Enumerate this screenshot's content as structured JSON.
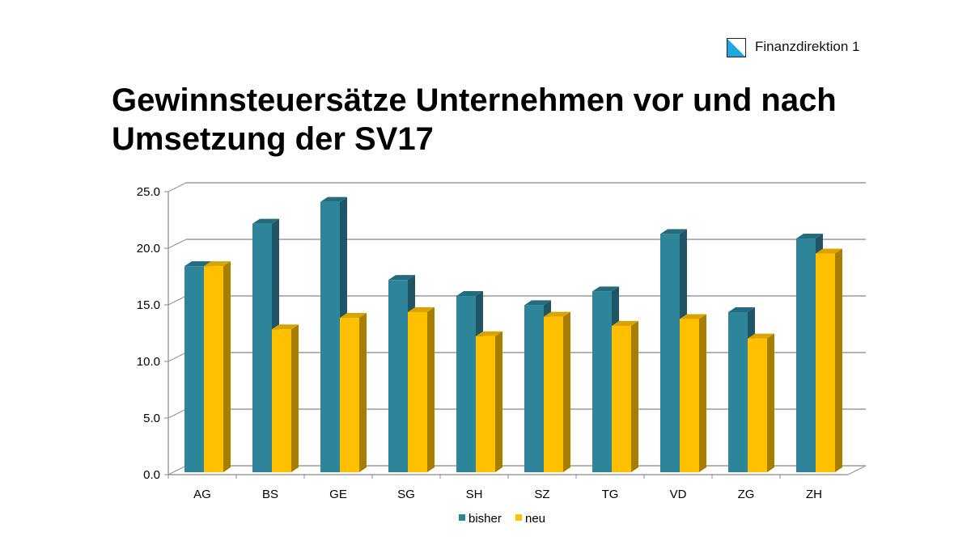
{
  "header": {
    "org_label": "Finanzdirektion 1",
    "logo_icon": "zurich-canton-flag-icon"
  },
  "colors": {
    "bisher": "#2e8499",
    "neu": "#ffc000"
  },
  "chart_data": {
    "type": "bar",
    "title": "Gewinnsteuersätze Unternehmen vor und nach Umsetzung der SV17",
    "xlabel": "",
    "ylabel": "",
    "ylim": [
      0,
      25
    ],
    "yticks": [
      "0.0",
      "5.0",
      "10.0",
      "15.0",
      "20.0",
      "25.0"
    ],
    "ytick_values": [
      0,
      5,
      10,
      15,
      20,
      25
    ],
    "grid": true,
    "legend_position": "bottom",
    "style": "3d-clustered-column",
    "categories": [
      "AG",
      "BS",
      "GE",
      "SG",
      "SH",
      "SZ",
      "TG",
      "VD",
      "ZG",
      "ZH"
    ],
    "series": [
      {
        "name": "bisher",
        "values": [
          18.3,
          22.0,
          23.9,
          17.1,
          15.7,
          14.9,
          16.1,
          21.1,
          14.3,
          20.7
        ]
      },
      {
        "name": "neu",
        "values": [
          18.3,
          12.8,
          13.8,
          14.3,
          12.2,
          13.9,
          13.1,
          13.7,
          12.0,
          19.4
        ]
      }
    ]
  }
}
